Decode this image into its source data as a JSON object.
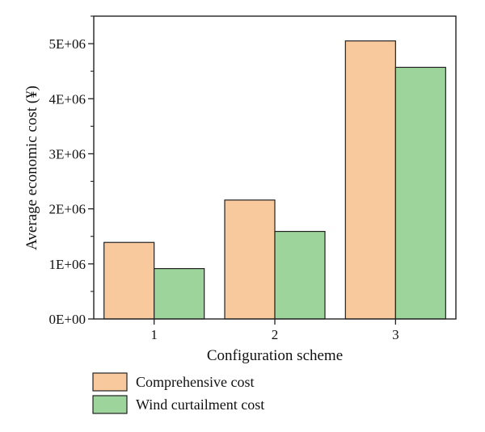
{
  "chart_data": {
    "type": "bar",
    "categories": [
      "1",
      "2",
      "3"
    ],
    "series": [
      {
        "name": "Comprehensive cost",
        "color": "#f9c99e",
        "values": [
          1390000,
          2160000,
          5050000
        ]
      },
      {
        "name": "Wind curtailment cost",
        "color": "#9dd49c",
        "values": [
          915000,
          1590000,
          4570000
        ]
      }
    ],
    "xlabel": "Configuration scheme",
    "ylabel": "Average economic cost (¥)",
    "ylim": [
      0,
      5500000
    ],
    "yticks": [
      0,
      1000000,
      2000000,
      3000000,
      4000000,
      5000000
    ],
    "ytick_labels": [
      "0E+00",
      "1E+06",
      "2E+06",
      "3E+06",
      "4E+06",
      "5E+06"
    ],
    "grid": false,
    "legend_position": "bottom-left"
  }
}
